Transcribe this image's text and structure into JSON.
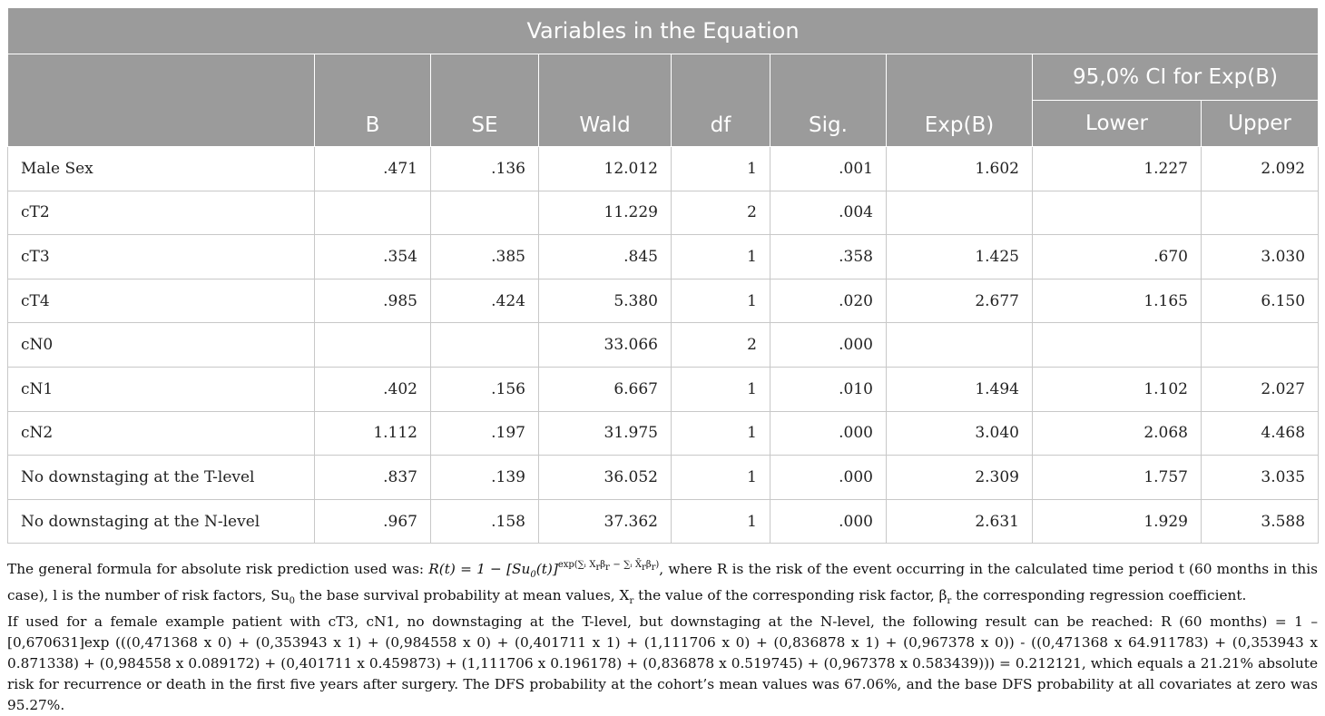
{
  "table": {
    "title": "Variables in the Equation",
    "columns": [
      "B",
      "SE",
      "Wald",
      "df",
      "Sig.",
      "Exp(B)"
    ],
    "ci_group": "95,0% CI for Exp(B)",
    "ci_columns": [
      "Lower",
      "Upper"
    ],
    "rows": [
      {
        "label": "Male Sex",
        "B": ".471",
        "SE": ".136",
        "Wald": "12.012",
        "df": "1",
        "Sig": ".001",
        "ExpB": "1.602",
        "Lower": "1.227",
        "Upper": "2.092"
      },
      {
        "label": "cT2",
        "B": "",
        "SE": "",
        "Wald": "11.229",
        "df": "2",
        "Sig": ".004",
        "ExpB": "",
        "Lower": "",
        "Upper": ""
      },
      {
        "label": "cT3",
        "B": ".354",
        "SE": ".385",
        "Wald": ".845",
        "df": "1",
        "Sig": ".358",
        "ExpB": "1.425",
        "Lower": ".670",
        "Upper": "3.030"
      },
      {
        "label": "cT4",
        "B": ".985",
        "SE": ".424",
        "Wald": "5.380",
        "df": "1",
        "Sig": ".020",
        "ExpB": "2.677",
        "Lower": "1.165",
        "Upper": "6.150"
      },
      {
        "label": "cN0",
        "B": "",
        "SE": "",
        "Wald": "33.066",
        "df": "2",
        "Sig": ".000",
        "ExpB": "",
        "Lower": "",
        "Upper": ""
      },
      {
        "label": "cN1",
        "B": ".402",
        "SE": ".156",
        "Wald": "6.667",
        "df": "1",
        "Sig": ".010",
        "ExpB": "1.494",
        "Lower": "1.102",
        "Upper": "2.027"
      },
      {
        "label": "cN2",
        "B": "1.112",
        "SE": ".197",
        "Wald": "31.975",
        "df": "1",
        "Sig": ".000",
        "ExpB": "3.040",
        "Lower": "2.068",
        "Upper": "4.468"
      },
      {
        "label": "No downstaging at the T-level",
        "B": ".837",
        "SE": ".139",
        "Wald": "36.052",
        "df": "1",
        "Sig": ".000",
        "ExpB": "2.309",
        "Lower": "1.757",
        "Upper": "3.035"
      },
      {
        "label": "No downstaging at the N-level",
        "B": ".967",
        "SE": ".158",
        "Wald": "37.362",
        "df": "1",
        "Sig": ".000",
        "ExpB": "2.631",
        "Lower": "1.929",
        "Upper": "3.588"
      }
    ]
  },
  "notes": {
    "p1_lead": "The general formula for absolute risk prediction used was: ",
    "formula": {
      "lhs": "R(t) = 1 − [Su",
      "sub0": "0",
      "mid": "(t)]",
      "exp": "exp(∑ᵢ X",
      "exp_tail": "β",
      "exp_r": "r",
      "exp_minus": " − ∑ᵢ X̄",
      "exp_r2": "r",
      "exp_b": "β",
      "exp_r3": "r",
      "exp_close": ")"
    },
    "p1_a": ", where R is the risk of the event occurring in the calculated time period t (60 months in this case), l is the number of risk factors, Su",
    "p1_sub0": "0",
    "p1_b": " the base survival probability at mean values, X",
    "p1_subr1": "r",
    "p1_c": " the value of the corresponding risk factor, β",
    "p1_subr2": "r",
    "p1_d": " the corresponding regression coefficient.",
    "p2": "If used for a female example patient with cT3, cN1, no downstaging at the T-level, but downstaging at the N-level, the following result can be reached: R (60 months) = 1 – [0,670631]exp (((0,471368 x 0) + (0,353943 x 1) + (0,984558 x 0) + (0,401711 x 1) + (1,111706 x 0) + (0,836878 x 1) + (0,967378 x 0)) - ((0,471368 x 64.911783) + (0,353943 x 0.871338) + (0,984558 x 0.089172) + (0,401711 x 0.459873) + (1,111706 x 0.196178) + (0,836878 x 0.519745) + (0,967378 x 0.583439))) = 0.212121, which equals a 21.21% absolute risk for recurrence or death in the first five years after surgery. The DFS probability at the cohort’s mean values was 67.06%, and the base DFS probability at all covariates at zero was 95.27%."
  }
}
